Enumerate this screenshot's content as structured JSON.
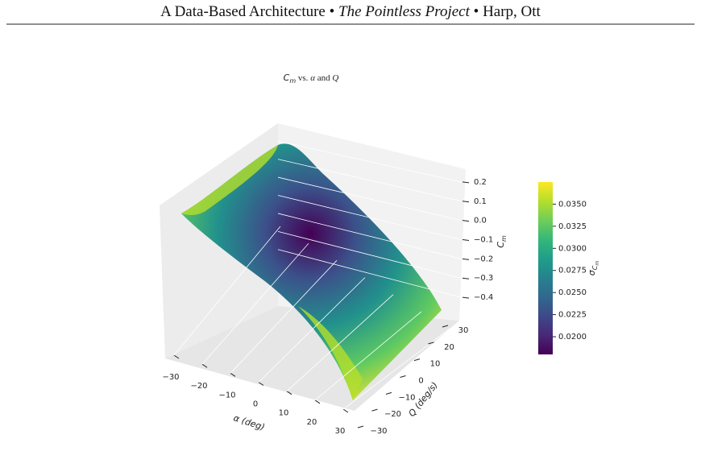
{
  "header": {
    "title": "A Data-Based Architecture",
    "separator": "•",
    "project": "The Pointless Project",
    "authors": "Harp, Ott"
  },
  "chart_data": {
    "type": "surface3d",
    "title": [
      "C",
      "m",
      " vs. ",
      "α",
      " and ",
      "Q"
    ],
    "xlabel": "α (deg)",
    "ylabel": "Q (deg/s)",
    "zlabel": [
      "C",
      "m"
    ],
    "xlim": [
      -30,
      30
    ],
    "xticks": [
      {
        "value": -30,
        "label": "−30"
      },
      {
        "value": -20,
        "label": "−20"
      },
      {
        "value": -10,
        "label": "−10"
      },
      0,
      10,
      20,
      30
    ],
    "ylim": [
      -30,
      30
    ],
    "yticks": [
      {
        "value": -30,
        "label": "−30"
      },
      {
        "value": -20,
        "label": "−20"
      },
      {
        "value": -10,
        "label": "−10"
      },
      0,
      10,
      20,
      30
    ],
    "zlim": [
      -0.45,
      0.25
    ],
    "zticks": [
      {
        "value": -0.4,
        "label": "−0.4"
      },
      {
        "value": -0.3,
        "label": "−0.3"
      },
      {
        "value": -0.2,
        "label": "−0.2"
      },
      {
        "value": -0.1,
        "label": "−0.1"
      },
      {
        "value": 0,
        "label": "0.0"
      },
      0.1,
      0.2
    ],
    "colormap": "viridis",
    "colorbar_label": [
      "σ",
      "C",
      "m"
    ],
    "clim": [
      0.018,
      0.0375
    ],
    "cticks": [
      {
        "value": 0.02,
        "label": "0.0200"
      },
      {
        "value": 0.0225,
        "label": "0.0225"
      },
      {
        "value": 0.025,
        "label": "0.0250"
      },
      {
        "value": 0.0275,
        "label": "0.0275"
      },
      {
        "value": 0.03,
        "label": "0.0300"
      },
      {
        "value": 0.0325,
        "label": "0.0325"
      },
      {
        "value": 0.035,
        "label": "0.0350"
      }
    ]
  }
}
